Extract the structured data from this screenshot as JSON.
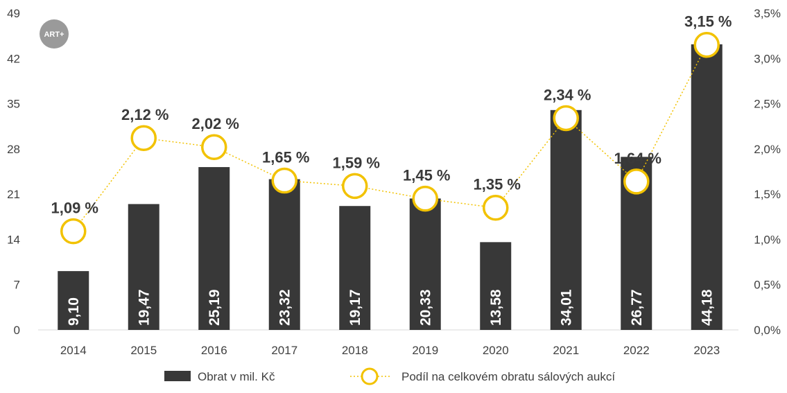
{
  "logo": {
    "text": "ART+",
    "color": "#9a9a9a"
  },
  "colors": {
    "bar": "#383838",
    "line": "#f2c200",
    "marker_fill": "#ffffff",
    "bar_label": "#ffffff"
  },
  "chart_data": {
    "type": "bar",
    "categories": [
      "2014",
      "2015",
      "2016",
      "2017",
      "2018",
      "2019",
      "2020",
      "2021",
      "2022",
      "2023"
    ],
    "series": [
      {
        "name": "Obrat v mil. Kč",
        "kind": "bar",
        "axis": "left",
        "values": [
          9.1,
          19.47,
          25.19,
          23.32,
          19.17,
          20.33,
          13.58,
          34.01,
          26.77,
          44.18
        ],
        "labels": [
          "9,10",
          "19,47",
          "25,19",
          "23,32",
          "19,17",
          "20,33",
          "13,58",
          "34,01",
          "26,77",
          "44,18"
        ]
      },
      {
        "name": "Podíl na celkovém obratu sálových aukcí",
        "kind": "line",
        "axis": "right",
        "values": [
          1.09,
          2.12,
          2.02,
          1.65,
          1.59,
          1.45,
          1.35,
          2.34,
          1.64,
          3.15
        ],
        "labels": [
          "1,09 %",
          "2,12 %",
          "2,02 %",
          "1,65 %",
          "1,59 %",
          "1,45 %",
          "1,35 %",
          "2,34 %",
          "1,64 %",
          "3,15 %"
        ]
      }
    ],
    "y_left": {
      "ylim": [
        0,
        49
      ],
      "ticks": [
        "0",
        "7",
        "14",
        "21",
        "28",
        "35",
        "42",
        "49"
      ]
    },
    "y_right": {
      "ylim": [
        0,
        3.5
      ],
      "ticks": [
        "0,0%",
        "0,5%",
        "1,0%",
        "1,5%",
        "2,0%",
        "2,5%",
        "3,0%",
        "3,5%"
      ]
    },
    "grid": false,
    "legend_position": "bottom",
    "legend": [
      "Obrat v mil. Kč",
      "Podíl na celkovém obratu sálových aukcí"
    ]
  }
}
